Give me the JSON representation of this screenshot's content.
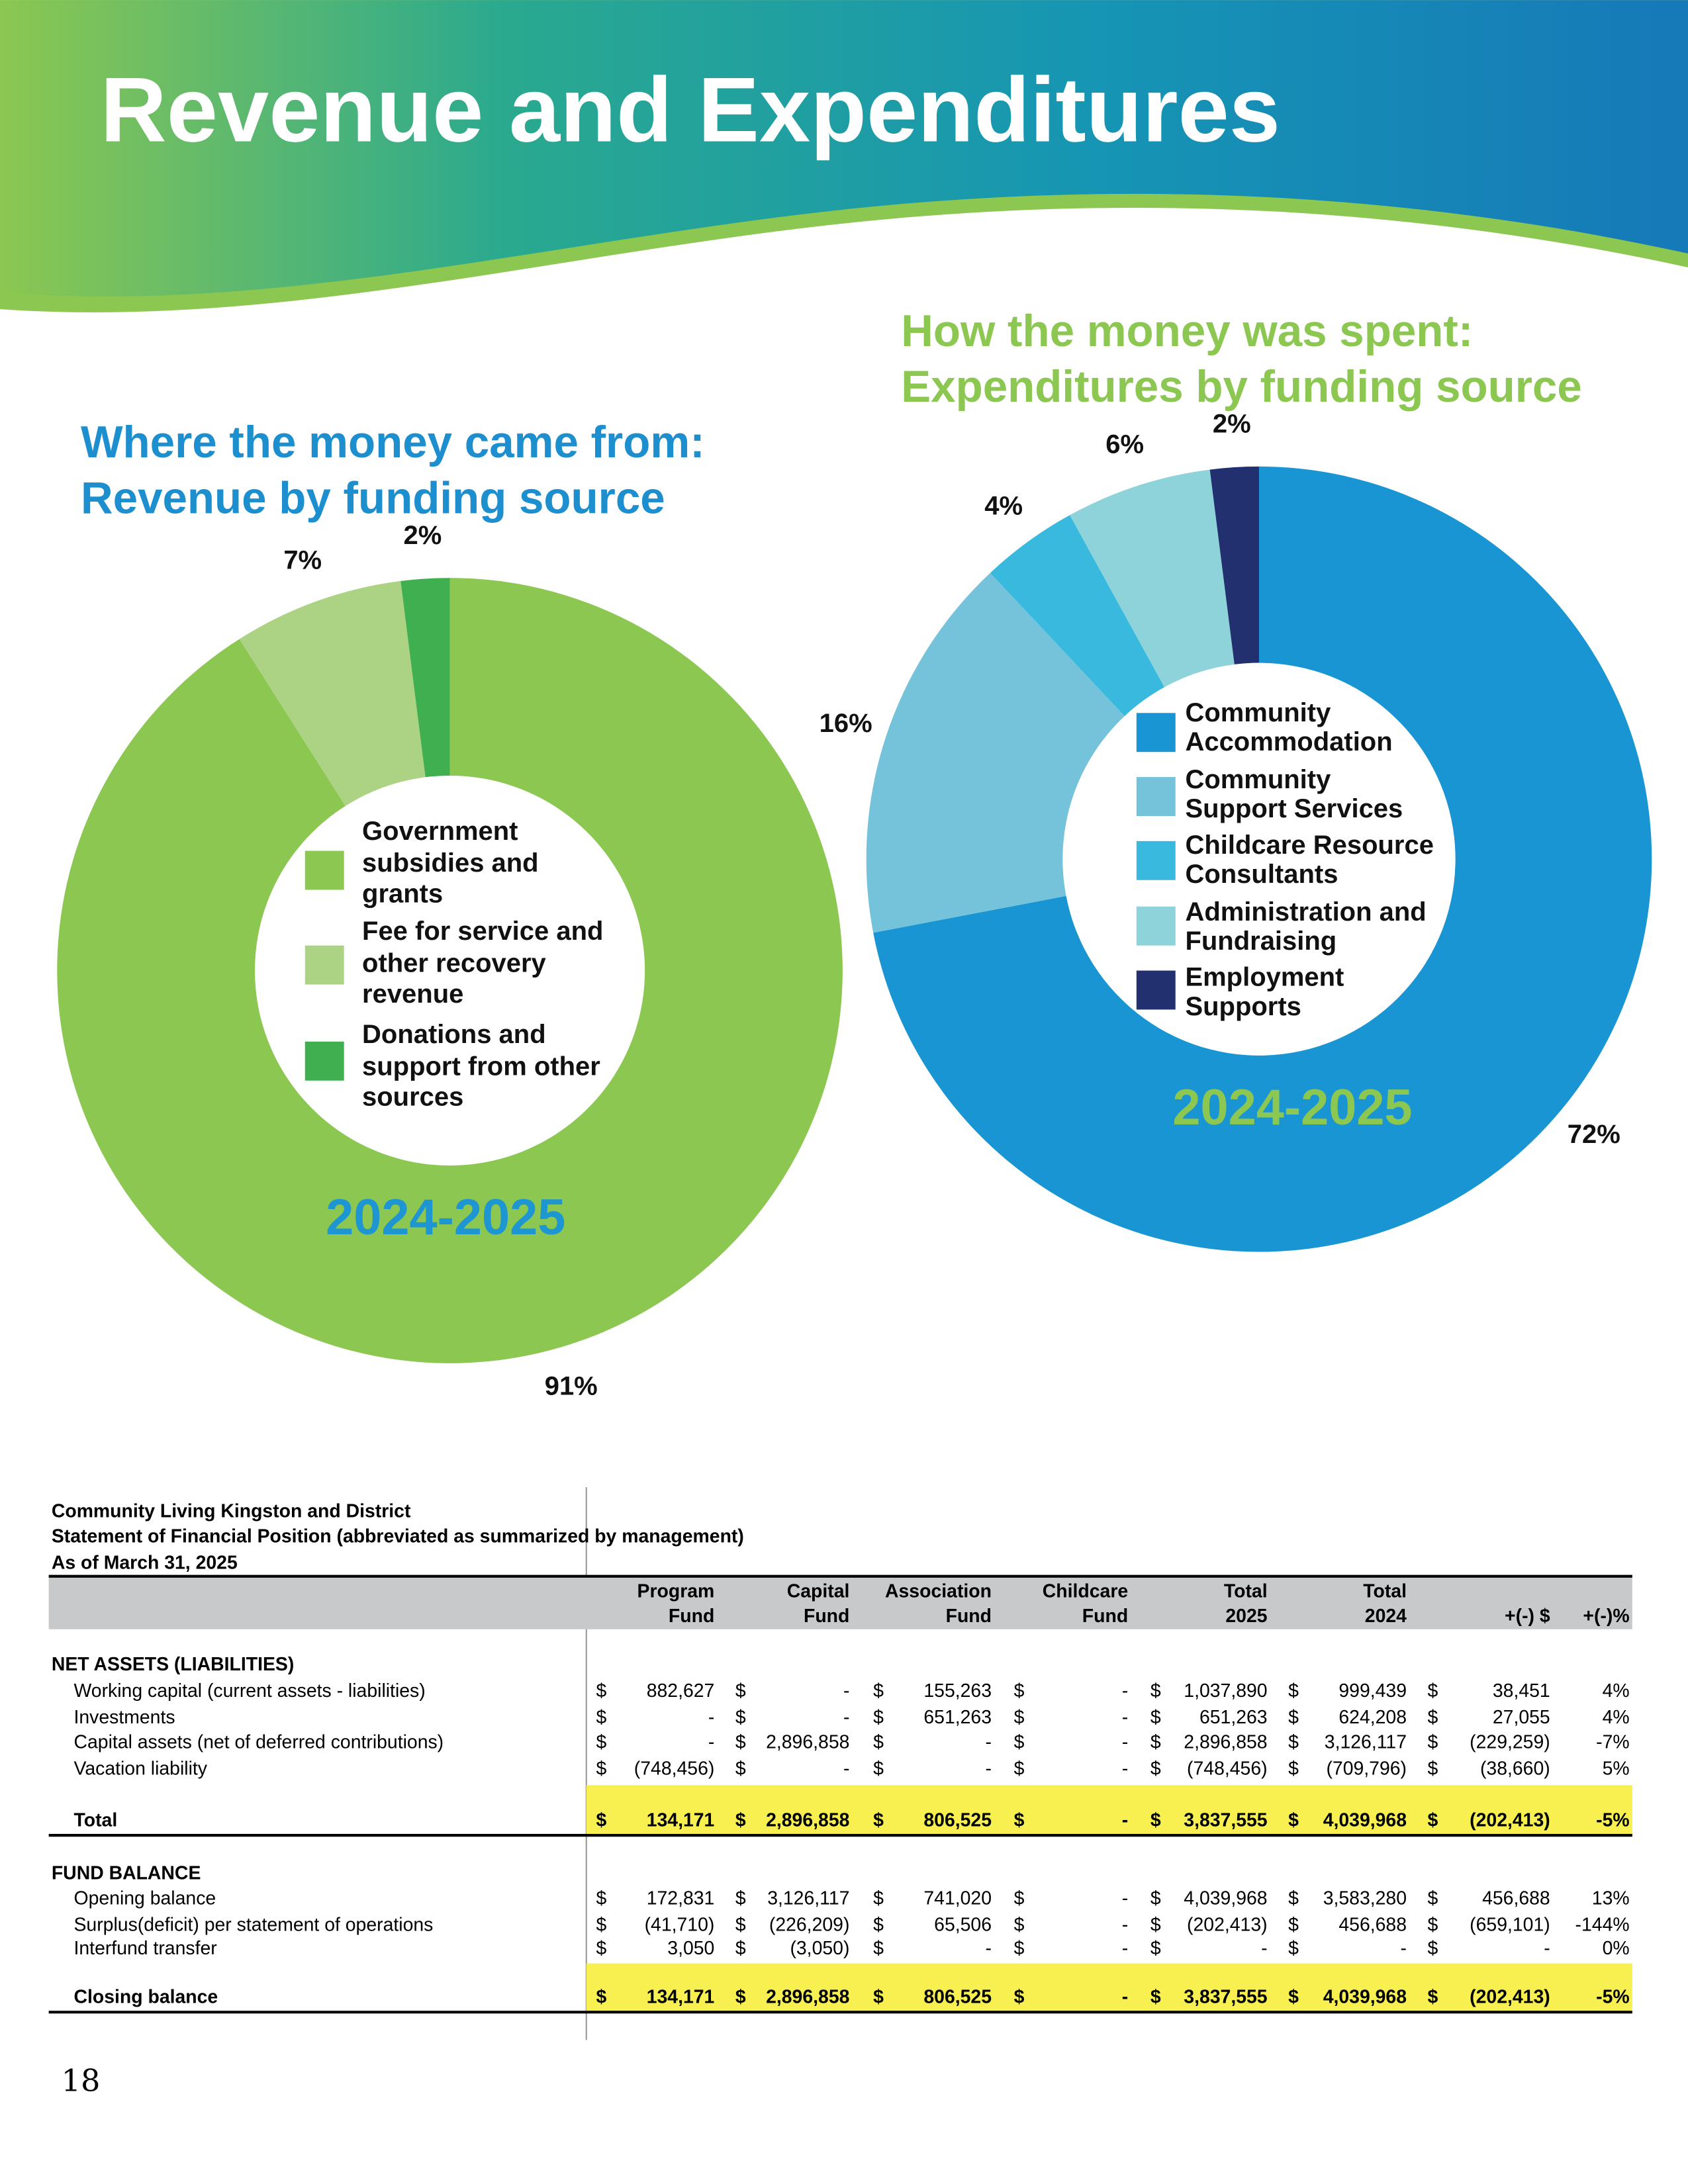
{
  "header": {
    "title": "Revenue and Expenditures"
  },
  "chart_data": [
    {
      "type": "pie",
      "donut": true,
      "title": "Where the money came from:",
      "subtitle": "Revenue by funding source",
      "annotation": "2024-2025",
      "categories": [
        "Government subsidies and grants",
        "Fee for service and other recovery revenue",
        "Donations and support from other sources"
      ],
      "values": [
        91,
        7,
        2
      ],
      "value_labels": [
        "91%",
        "7%",
        "2%"
      ],
      "colors": [
        "#8cc751",
        "#acd383",
        "#3faf4f"
      ]
    },
    {
      "type": "pie",
      "donut": true,
      "title": "How the money was spent:",
      "subtitle": "Expenditures by funding source",
      "annotation": "2024-2025",
      "categories": [
        "Community Accommodation",
        "Community Support Services",
        "Childcare Resource Consultants",
        "Administration and Fundraising",
        "Employment Supports"
      ],
      "values": [
        72,
        16,
        4,
        6,
        2
      ],
      "value_labels": [
        "72%",
        "16%",
        "4%",
        "6%",
        "2%"
      ],
      "colors": [
        "#1a95d3",
        "#74c3da",
        "#3ab9de",
        "#8ed3da",
        "#233070"
      ]
    }
  ],
  "table": {
    "title_lines": [
      "Community Living Kingston and District",
      "Statement of Financial Position (abbreviated as summarized by management)",
      "As of March 31, 2025"
    ],
    "currency": "$",
    "columns": [
      "Program Fund",
      "Capital Fund",
      "Association Fund",
      "Childcare Fund",
      "Total 2025",
      "Total 2024",
      "+(-) $",
      "+(-)%"
    ],
    "sections": [
      {
        "heading": "NET ASSETS (LIABILITIES)",
        "rows": [
          [
            "Working capital (current assets - liabilities)",
            "882,627",
            "-",
            "155,263",
            "-",
            "1,037,890",
            "999,439",
            "38,451",
            "4%"
          ],
          [
            "Investments",
            "-",
            "-",
            "651,263",
            "-",
            "651,263",
            "624,208",
            "27,055",
            "4%"
          ],
          [
            "Capital assets (net of deferred contributions)",
            "-",
            "2,896,858",
            "-",
            "-",
            "2,896,858",
            "3,126,117",
            "(229,259)",
            "-7%"
          ],
          [
            "Vacation liability",
            "(748,456)",
            "-",
            "-",
            "-",
            "(748,456)",
            "(709,796)",
            "(38,660)",
            "5%"
          ]
        ],
        "total": [
          "Total",
          "134,171",
          "2,896,858",
          "806,525",
          "-",
          "3,837,555",
          "4,039,968",
          "(202,413)",
          "-5%"
        ]
      },
      {
        "heading": "FUND BALANCE",
        "rows": [
          [
            "Opening balance",
            "172,831",
            "3,126,117",
            "741,020",
            "-",
            "4,039,968",
            "3,583,280",
            "456,688",
            "13%"
          ],
          [
            "Surplus(deficit) per statement of operations",
            "(41,710)",
            "(226,209)",
            "65,506",
            "-",
            "(202,413)",
            "456,688",
            "(659,101)",
            "-144%"
          ],
          [
            "Interfund transfer",
            "3,050",
            "(3,050)",
            "-",
            "-",
            "-",
            "-",
            "-",
            "0%"
          ]
        ],
        "total": [
          "Closing balance",
          "134,171",
          "2,896,858",
          "806,525",
          "-",
          "3,837,555",
          "4,039,968",
          "(202,413)",
          "-5%"
        ]
      }
    ]
  },
  "page_number": "18"
}
